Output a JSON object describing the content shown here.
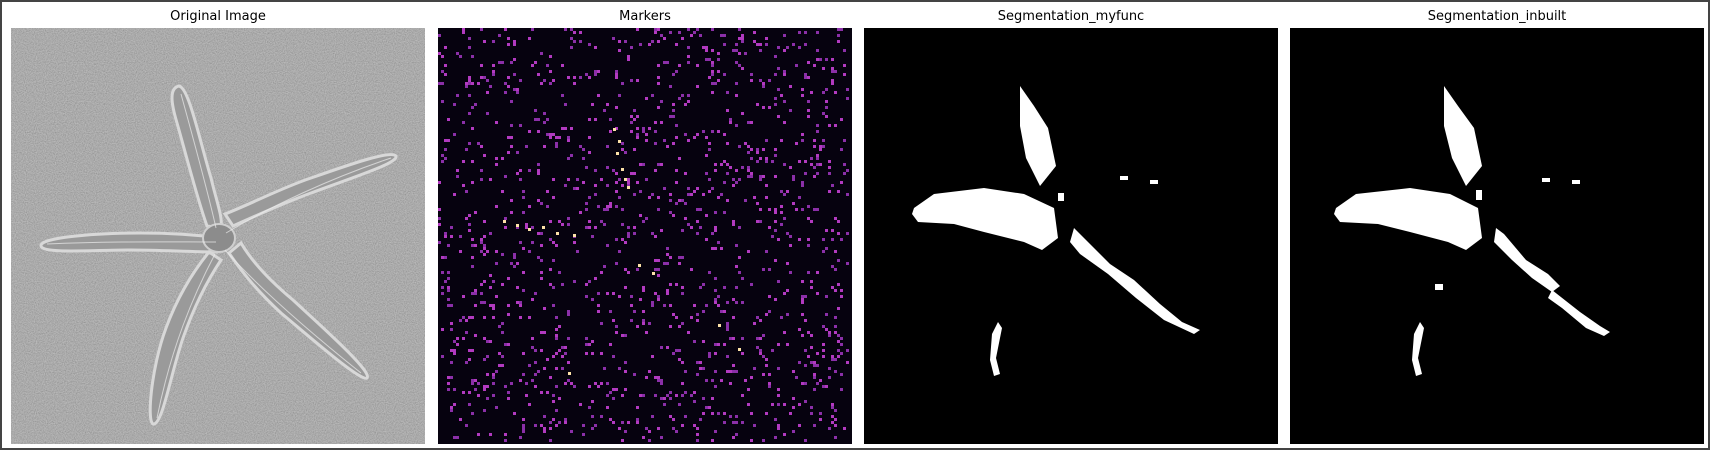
{
  "window": {
    "panels": [
      {
        "title": "Original Image",
        "kind": "grayscale"
      },
      {
        "title": "Markers",
        "kind": "marker-map"
      },
      {
        "title": "Segmentation_myfunc",
        "kind": "binary-mask"
      },
      {
        "title": "Segmentation_inbuilt",
        "kind": "binary-mask"
      }
    ]
  },
  "colors": {
    "frame_border": "#444444",
    "sand_dark": "#6b6b6b",
    "sand_light": "#8f8f8f",
    "starfish_body": "#9c9c9c",
    "starfish_edge": "#dcdcdc",
    "marker_background": "#06020f",
    "marker_dot": "#b23ac0",
    "marker_dot_alt": "#8b2fa8",
    "marker_bright": "#fde2a8",
    "mask_background": "#000000",
    "mask_foreground": "#ffffff"
  }
}
